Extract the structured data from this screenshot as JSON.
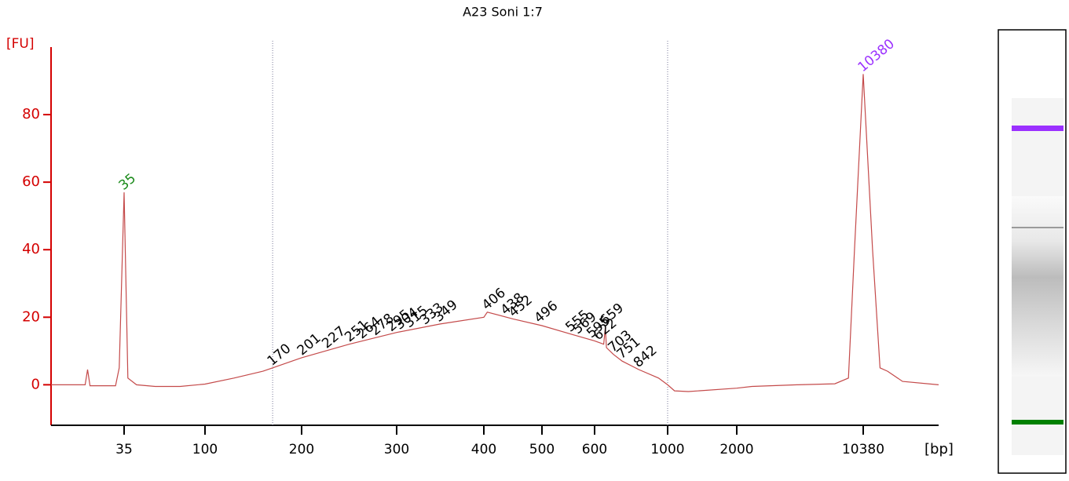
{
  "chart_data": {
    "type": "line",
    "title": "A23 Soni 1:7",
    "y_label": "[FU]",
    "x_label": "[bp]",
    "ylim": [
      -12,
      100
    ],
    "yticks": [
      0,
      20,
      40,
      60,
      80
    ],
    "xlim": [
      -25,
      15400
    ],
    "xticks": [
      35,
      100,
      200,
      300,
      400,
      500,
      600,
      1000,
      2000,
      10380
    ],
    "axis_color": "#d40000",
    "line_color": "#c44a4a",
    "x": [
      -25,
      3,
      5,
      7,
      28,
      31,
      35,
      38,
      45,
      60,
      80,
      100,
      130,
      160,
      170,
      200,
      250,
      300,
      350,
      400,
      406,
      450,
      500,
      555,
      600,
      650,
      659,
      665,
      703,
      751,
      842,
      950,
      1000,
      1100,
      1300,
      2000,
      3000,
      6000,
      8500,
      9400,
      9800,
      10380,
      11000,
      11500,
      12000,
      13000,
      15400
    ],
    "values": [
      0,
      0,
      4.5,
      -0.3,
      -0.3,
      5,
      57,
      2,
      0,
      -0.5,
      -0.5,
      0.2,
      2,
      4,
      5,
      8,
      12,
      15.5,
      18,
      20,
      21.5,
      19.5,
      17.5,
      15,
      13,
      12,
      17,
      11,
      9,
      7,
      4.5,
      2,
      0,
      -1.8,
      -2,
      -1,
      -0.5,
      0,
      0.3,
      2,
      40,
      92,
      40,
      5,
      4,
      1,
      0
    ],
    "region": [
      170,
      1000
    ],
    "peaks": [
      {
        "bp": 35,
        "color": "#1a8a1a"
      },
      {
        "bp": 170,
        "color": "#000000"
      },
      {
        "bp": 201,
        "color": "#000000"
      },
      {
        "bp": 227,
        "color": "#000000"
      },
      {
        "bp": 251,
        "color": "#000000"
      },
      {
        "bp": 264,
        "color": "#000000"
      },
      {
        "bp": 278,
        "color": "#000000"
      },
      {
        "bp": 295,
        "color": "#000000"
      },
      {
        "bp": 304,
        "color": "#000000"
      },
      {
        "bp": 315,
        "color": "#000000"
      },
      {
        "bp": 333,
        "color": "#000000"
      },
      {
        "bp": 349,
        "color": "#000000"
      },
      {
        "bp": 406,
        "color": "#000000"
      },
      {
        "bp": 438,
        "color": "#000000"
      },
      {
        "bp": 452,
        "color": "#000000"
      },
      {
        "bp": 496,
        "color": "#000000"
      },
      {
        "bp": 555,
        "color": "#000000"
      },
      {
        "bp": 569,
        "color": "#000000"
      },
      {
        "bp": 595,
        "color": "#000000"
      },
      {
        "bp": 622,
        "color": "#000000"
      },
      {
        "bp": 659,
        "color": "#000000"
      },
      {
        "bp": 703,
        "color": "#000000"
      },
      {
        "bp": 751,
        "color": "#000000"
      },
      {
        "bp": 842,
        "color": "#000000"
      },
      {
        "bp": 10380,
        "color": "#9b30ff"
      }
    ]
  }
}
